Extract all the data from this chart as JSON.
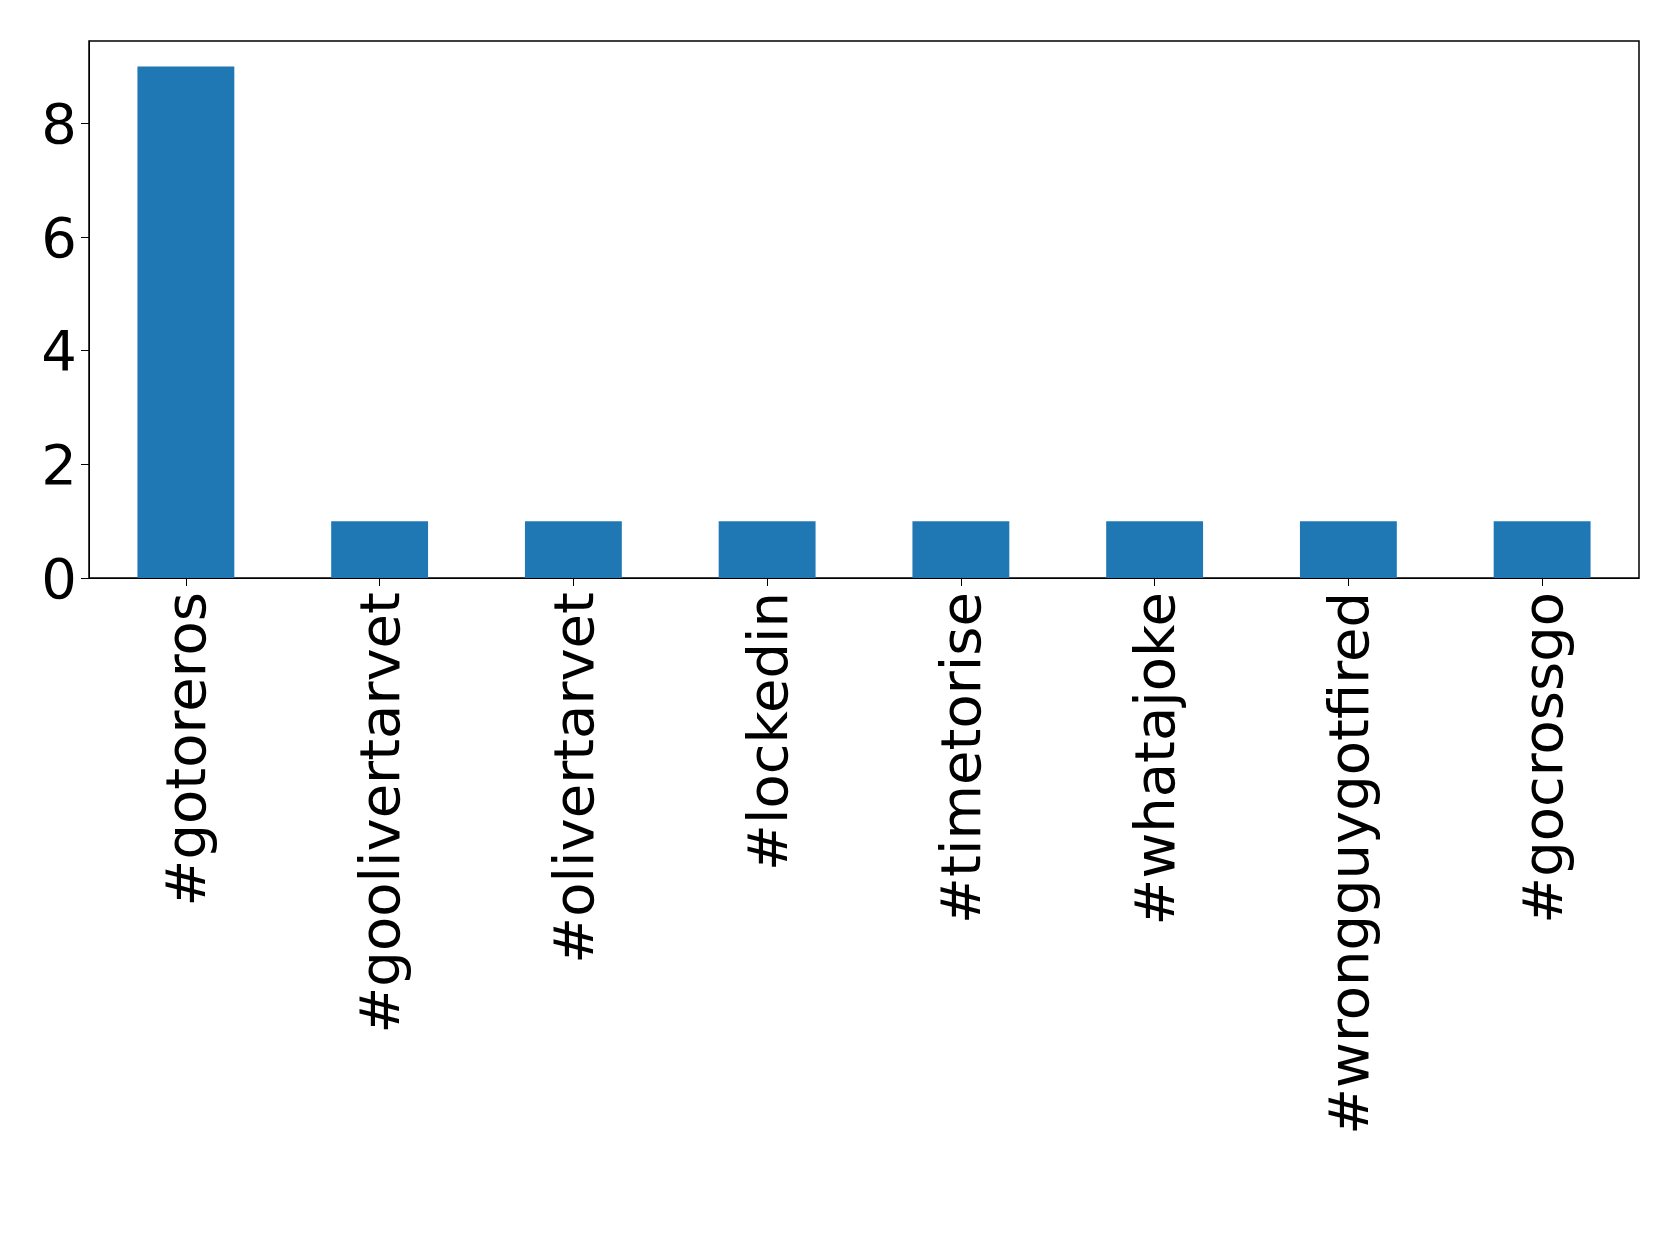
{
  "chart_data": {
    "type": "bar",
    "categories": [
      "#gotoreros",
      "#goolivertarvet",
      "#olivertarvet",
      "#lockedin",
      "#timetorise",
      "#whatajoke",
      "#wrongguygotfired",
      "#gocrossgo"
    ],
    "values": [
      9,
      1,
      1,
      1,
      1,
      1,
      1,
      1
    ],
    "color": "#1f77b4",
    "ylim": [
      0,
      9.45
    ],
    "yticks": [
      0,
      2,
      4,
      6,
      8
    ],
    "grid": false
  }
}
